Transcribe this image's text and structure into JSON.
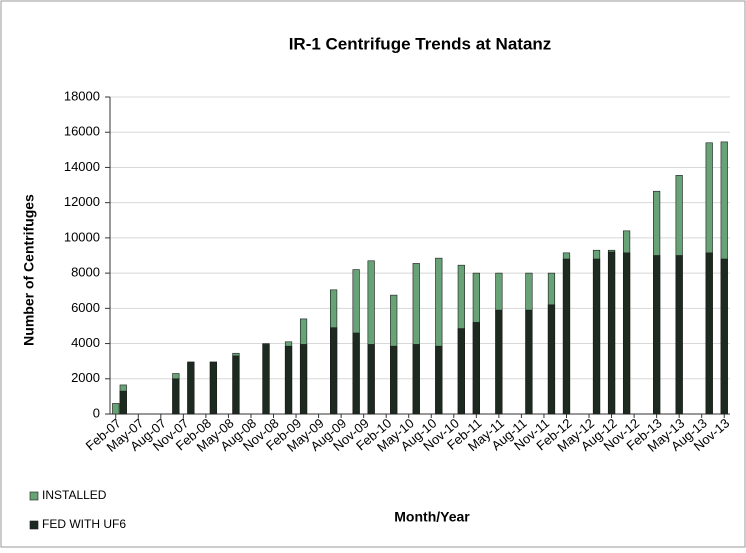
{
  "chart_data": {
    "type": "bar",
    "title": "IR-1 Centrifuge Trends at Natanz",
    "x_label": "Month/Year",
    "y_label": "Number of Centrifuges",
    "categories": [
      "Feb-07",
      null,
      null,
      "May-07",
      null,
      null,
      "Aug-07",
      null,
      null,
      "Nov-07",
      null,
      null,
      "Feb-08",
      null,
      null,
      "May-08",
      null,
      null,
      "Aug-08",
      null,
      null,
      "Nov-08",
      null,
      null,
      "Feb-09",
      null,
      null,
      "May-09",
      null,
      null,
      "Aug-09",
      null,
      null,
      "Nov-09",
      null,
      null,
      "Feb-10",
      null,
      null,
      "May-10",
      null,
      null,
      "Aug-10",
      null,
      null,
      "Nov-10",
      null,
      null,
      "Feb-11",
      null,
      null,
      "May-11",
      null,
      null,
      "Aug-11",
      null,
      null,
      "Nov-11",
      null,
      null,
      "Feb-12",
      null,
      null,
      "May-12",
      null,
      null,
      "Aug-12",
      null,
      null,
      "Nov-12",
      null,
      null,
      "Feb-13",
      null,
      null,
      "May-13",
      null,
      null,
      "Aug-13",
      null,
      null,
      "Nov-13"
    ],
    "series": [
      {
        "name": "INSTALLED",
        "color": "#67a376",
        "values": [
          600,
          1650,
          null,
          null,
          null,
          null,
          null,
          null,
          2300,
          null,
          2950,
          null,
          null,
          2950,
          null,
          null,
          3450,
          null,
          null,
          null,
          4000,
          null,
          null,
          4100,
          null,
          5400,
          null,
          null,
          null,
          7050,
          null,
          null,
          8200,
          null,
          8700,
          null,
          null,
          6750,
          null,
          null,
          8550,
          null,
          null,
          8850,
          null,
          null,
          8450,
          null,
          8000,
          null,
          null,
          8000,
          null,
          null,
          null,
          8000,
          null,
          null,
          8000,
          null,
          9150,
          null,
          null,
          null,
          9300,
          null,
          9300,
          null,
          10400,
          null,
          null,
          null,
          12650,
          null,
          null,
          13550,
          null,
          null,
          null,
          15400,
          null,
          15450
        ]
      },
      {
        "name": "FED WITH UF6",
        "color": "#1c2a1f",
        "values": [
          0,
          1300,
          null,
          null,
          null,
          null,
          null,
          null,
          2000,
          null,
          2950,
          null,
          null,
          2950,
          null,
          null,
          3300,
          null,
          null,
          null,
          3950,
          null,
          null,
          3850,
          null,
          3950,
          null,
          null,
          null,
          4900,
          null,
          null,
          4600,
          null,
          3950,
          null,
          null,
          3850,
          null,
          null,
          3950,
          null,
          null,
          3850,
          null,
          null,
          4850,
          null,
          5200,
          null,
          null,
          5900,
          null,
          null,
          null,
          5900,
          null,
          null,
          6200,
          null,
          8800,
          null,
          null,
          null,
          8800,
          null,
          9200,
          null,
          9150,
          null,
          null,
          null,
          9000,
          null,
          null,
          9000,
          null,
          null,
          null,
          9150,
          null,
          8800
        ]
      }
    ],
    "ylim": [
      0,
      18000
    ],
    "yticks": [
      0,
      2000,
      4000,
      6000,
      8000,
      10000,
      12000,
      14000,
      16000,
      18000
    ],
    "grid": true,
    "legend": "bottom-left"
  }
}
